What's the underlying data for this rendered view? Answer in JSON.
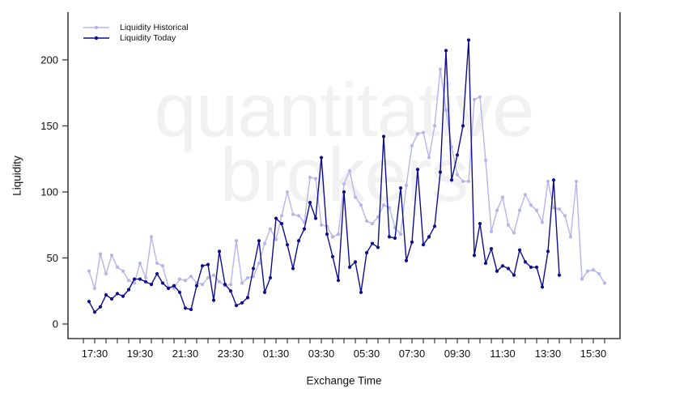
{
  "watermark": {
    "line1": "quantitative",
    "line2": "brokers"
  },
  "axes": {
    "y_label": "Liquidity",
    "x_label": "Exchange Time",
    "y_ticks": [
      0,
      50,
      100,
      150,
      200
    ],
    "x_tick_labels": [
      "17:30",
      "19:30",
      "21:30",
      "23:30",
      "01:30",
      "03:30",
      "05:30",
      "07:30",
      "09:30",
      "11:30",
      "13:30",
      "15:30"
    ]
  },
  "legend": {
    "items": [
      {
        "label": "Liquidity Historical",
        "color": "#b5b5ea"
      },
      {
        "label": "Liquidity Today",
        "color": "#0d0d8e"
      }
    ]
  },
  "chart_data": {
    "type": "line",
    "title": "",
    "xlabel": "Exchange Time",
    "ylabel": "Liquidity",
    "ylim": [
      0,
      235
    ],
    "grid": false,
    "legend_position": "top-left",
    "x_start_time": "17:15",
    "x_interval_minutes": 15,
    "x_axis_tick_every_minutes": 30,
    "x_axis_first_tick": "17:00",
    "x_axis_last_tick": "16:00",
    "series": [
      {
        "name": "Liquidity Historical",
        "color": "#b5b5ea",
        "values": [
          40,
          27,
          53,
          38,
          52,
          43,
          40,
          33,
          31,
          46,
          35,
          66,
          46,
          44,
          28,
          27,
          34,
          33,
          36,
          31,
          30,
          35,
          37,
          32,
          29,
          30,
          63,
          31,
          35,
          36,
          46,
          61,
          72,
          64,
          82,
          100,
          83,
          82,
          77,
          111,
          110,
          75,
          74,
          66,
          68,
          106,
          116,
          96,
          90,
          78,
          76,
          81,
          90,
          88,
          73,
          68,
          105,
          135,
          144,
          145,
          126,
          150,
          193,
          162,
          134,
          113,
          108,
          108,
          170,
          172,
          124,
          70,
          86,
          96,
          75,
          69,
          86,
          98,
          90,
          86,
          77,
          108,
          88,
          87,
          82,
          66,
          108,
          34,
          40,
          41,
          38,
          31
        ]
      },
      {
        "name": "Liquidity Today",
        "color": "#0d0d8e",
        "values": [
          17,
          9,
          13,
          22,
          19,
          23,
          21,
          26,
          34,
          34,
          32,
          30,
          38,
          31,
          27,
          29,
          24,
          12,
          11,
          29,
          44,
          45,
          18,
          55,
          30,
          25,
          14,
          16,
          20,
          42,
          63,
          24,
          35,
          80,
          76,
          60,
          42,
          63,
          72,
          92,
          80,
          126,
          68,
          51,
          33,
          100,
          43,
          47,
          24,
          54,
          61,
          58,
          142,
          66,
          65,
          103,
          48,
          62,
          117,
          60,
          66,
          74,
          115,
          207,
          109,
          128,
          150,
          215,
          52,
          76,
          46,
          57,
          40,
          44,
          42,
          37,
          56,
          47,
          43,
          43,
          28,
          55,
          109,
          37
        ]
      }
    ]
  }
}
